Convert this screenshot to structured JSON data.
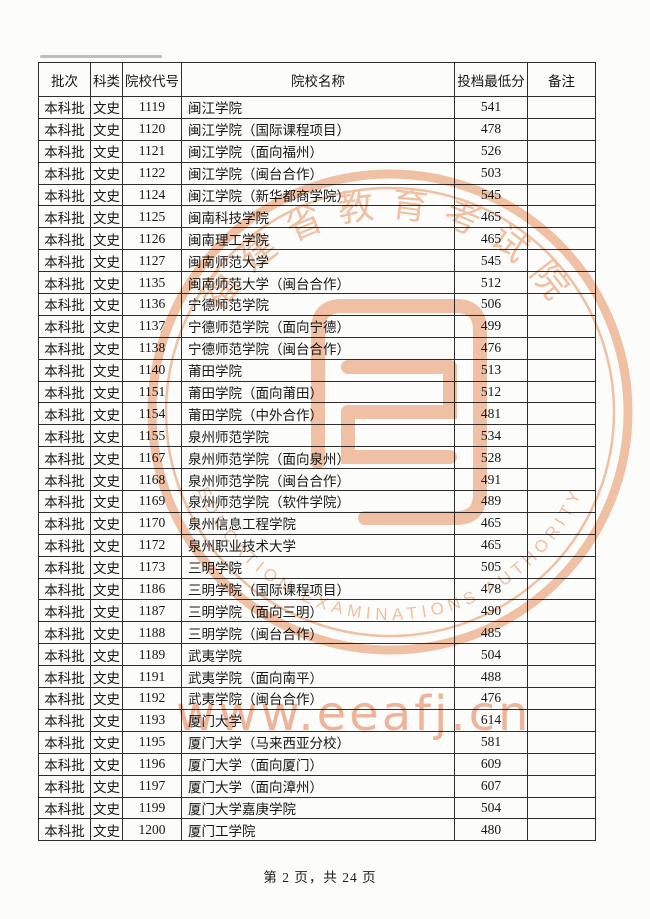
{
  "page": {
    "footer": "第 2 页，共 24 页"
  },
  "watermark": {
    "url_text": "www.eeafj.cn",
    "seal_top_text": "福建省教育考试院",
    "seal_bottom_text": "EDUCATION EXAMINATIONS AUTHORITY",
    "color": "#f2c3a6"
  },
  "table": {
    "headers": [
      "批次",
      "科类",
      "院校代号",
      "院校名称",
      "投档最低分",
      "备注"
    ],
    "rows": [
      {
        "batch": "本科批",
        "category": "文史",
        "code": "1119",
        "name": "闽江学院",
        "score": "541",
        "remark": ""
      },
      {
        "batch": "本科批",
        "category": "文史",
        "code": "1120",
        "name": "闽江学院（国际课程项目）",
        "score": "478",
        "remark": ""
      },
      {
        "batch": "本科批",
        "category": "文史",
        "code": "1121",
        "name": "闽江学院（面向福州）",
        "score": "526",
        "remark": ""
      },
      {
        "batch": "本科批",
        "category": "文史",
        "code": "1122",
        "name": "闽江学院（闽台合作）",
        "score": "503",
        "remark": ""
      },
      {
        "batch": "本科批",
        "category": "文史",
        "code": "1124",
        "name": "闽江学院（新华都商学院）",
        "score": "545",
        "remark": ""
      },
      {
        "batch": "本科批",
        "category": "文史",
        "code": "1125",
        "name": "闽南科技学院",
        "score": "465",
        "remark": ""
      },
      {
        "batch": "本科批",
        "category": "文史",
        "code": "1126",
        "name": "闽南理工学院",
        "score": "465",
        "remark": ""
      },
      {
        "batch": "本科批",
        "category": "文史",
        "code": "1127",
        "name": "闽南师范大学",
        "score": "545",
        "remark": ""
      },
      {
        "batch": "本科批",
        "category": "文史",
        "code": "1135",
        "name": "闽南师范大学（闽台合作）",
        "score": "512",
        "remark": ""
      },
      {
        "batch": "本科批",
        "category": "文史",
        "code": "1136",
        "name": "宁德师范学院",
        "score": "506",
        "remark": ""
      },
      {
        "batch": "本科批",
        "category": "文史",
        "code": "1137",
        "name": "宁德师范学院（面向宁德）",
        "score": "499",
        "remark": ""
      },
      {
        "batch": "本科批",
        "category": "文史",
        "code": "1138",
        "name": "宁德师范学院（闽台合作）",
        "score": "476",
        "remark": ""
      },
      {
        "batch": "本科批",
        "category": "文史",
        "code": "1140",
        "name": "莆田学院",
        "score": "513",
        "remark": ""
      },
      {
        "batch": "本科批",
        "category": "文史",
        "code": "1151",
        "name": "莆田学院（面向莆田）",
        "score": "512",
        "remark": ""
      },
      {
        "batch": "本科批",
        "category": "文史",
        "code": "1154",
        "name": "莆田学院（中外合作）",
        "score": "481",
        "remark": ""
      },
      {
        "batch": "本科批",
        "category": "文史",
        "code": "1155",
        "name": "泉州师范学院",
        "score": "534",
        "remark": ""
      },
      {
        "batch": "本科批",
        "category": "文史",
        "code": "1167",
        "name": "泉州师范学院（面向泉州）",
        "score": "528",
        "remark": ""
      },
      {
        "batch": "本科批",
        "category": "文史",
        "code": "1168",
        "name": "泉州师范学院（闽台合作）",
        "score": "491",
        "remark": ""
      },
      {
        "batch": "本科批",
        "category": "文史",
        "code": "1169",
        "name": "泉州师范学院（软件学院）",
        "score": "489",
        "remark": ""
      },
      {
        "batch": "本科批",
        "category": "文史",
        "code": "1170",
        "name": "泉州信息工程学院",
        "score": "465",
        "remark": ""
      },
      {
        "batch": "本科批",
        "category": "文史",
        "code": "1172",
        "name": "泉州职业技术大学",
        "score": "465",
        "remark": ""
      },
      {
        "batch": "本科批",
        "category": "文史",
        "code": "1173",
        "name": "三明学院",
        "score": "505",
        "remark": ""
      },
      {
        "batch": "本科批",
        "category": "文史",
        "code": "1186",
        "name": "三明学院（国际课程项目）",
        "score": "478",
        "remark": ""
      },
      {
        "batch": "本科批",
        "category": "文史",
        "code": "1187",
        "name": "三明学院（面向三明）",
        "score": "490",
        "remark": ""
      },
      {
        "batch": "本科批",
        "category": "文史",
        "code": "1188",
        "name": "三明学院（闽台合作）",
        "score": "485",
        "remark": ""
      },
      {
        "batch": "本科批",
        "category": "文史",
        "code": "1189",
        "name": "武夷学院",
        "score": "504",
        "remark": ""
      },
      {
        "batch": "本科批",
        "category": "文史",
        "code": "1191",
        "name": "武夷学院（面向南平）",
        "score": "488",
        "remark": ""
      },
      {
        "batch": "本科批",
        "category": "文史",
        "code": "1192",
        "name": "武夷学院（闽台合作）",
        "score": "476",
        "remark": ""
      },
      {
        "batch": "本科批",
        "category": "文史",
        "code": "1193",
        "name": "厦门大学",
        "score": "614",
        "remark": ""
      },
      {
        "batch": "本科批",
        "category": "文史",
        "code": "1195",
        "name": "厦门大学（马来西亚分校）",
        "score": "581",
        "remark": ""
      },
      {
        "batch": "本科批",
        "category": "文史",
        "code": "1196",
        "name": "厦门大学（面向厦门）",
        "score": "609",
        "remark": ""
      },
      {
        "batch": "本科批",
        "category": "文史",
        "code": "1197",
        "name": "厦门大学（面向漳州）",
        "score": "607",
        "remark": ""
      },
      {
        "batch": "本科批",
        "category": "文史",
        "code": "1199",
        "name": "厦门大学嘉庚学院",
        "score": "504",
        "remark": ""
      },
      {
        "batch": "本科批",
        "category": "文史",
        "code": "1200",
        "name": "厦门工学院",
        "score": "480",
        "remark": ""
      }
    ]
  }
}
